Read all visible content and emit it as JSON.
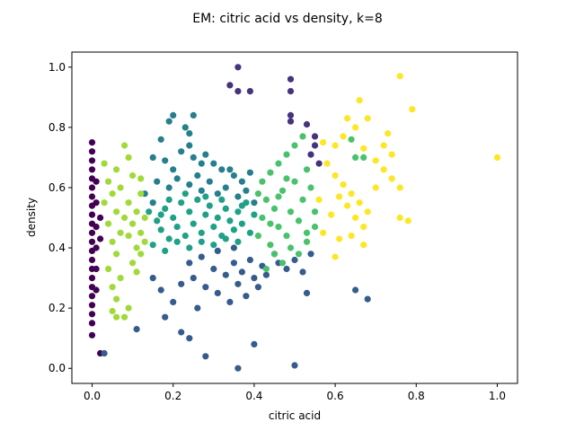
{
  "chart_data": {
    "type": "scatter",
    "title": "EM: citric acid vs density, k=8",
    "xlabel": "citric acid",
    "ylabel": "density",
    "xlim": [
      -0.05,
      1.05
    ],
    "ylim": [
      -0.05,
      1.05
    ],
    "xticks": [
      0.0,
      0.2,
      0.4,
      0.6,
      0.8,
      1.0
    ],
    "xtick_labels": [
      "0.0",
      "0.2",
      "0.4",
      "0.6",
      "0.8",
      "1.0"
    ],
    "yticks": [
      0.0,
      0.2,
      0.4,
      0.6,
      0.8,
      1.0
    ],
    "ytick_labels": [
      "0.0",
      "0.2",
      "0.4",
      "0.6",
      "0.8",
      "1.0"
    ],
    "grid": false,
    "legend": "none",
    "series": [
      {
        "color": "#440154",
        "points": [
          [
            0.0,
            0.75
          ],
          [
            0.0,
            0.72
          ],
          [
            0.0,
            0.69
          ],
          [
            0.0,
            0.66
          ],
          [
            0.0,
            0.63
          ],
          [
            0.0,
            0.6
          ],
          [
            0.0,
            0.57
          ],
          [
            0.0,
            0.54
          ],
          [
            0.0,
            0.51
          ],
          [
            0.0,
            0.48
          ],
          [
            0.0,
            0.45
          ],
          [
            0.0,
            0.42
          ],
          [
            0.0,
            0.39
          ],
          [
            0.0,
            0.36
          ],
          [
            0.0,
            0.33
          ],
          [
            0.0,
            0.3
          ],
          [
            0.0,
            0.27
          ],
          [
            0.0,
            0.24
          ],
          [
            0.0,
            0.21
          ],
          [
            0.0,
            0.18
          ],
          [
            0.0,
            0.15
          ],
          [
            0.0,
            0.11
          ],
          [
            0.01,
            0.62
          ],
          [
            0.01,
            0.55
          ],
          [
            0.01,
            0.47
          ],
          [
            0.01,
            0.4
          ],
          [
            0.01,
            0.33
          ],
          [
            0.01,
            0.26
          ],
          [
            0.02,
            0.05
          ],
          [
            0.02,
            0.5
          ],
          [
            0.02,
            0.43
          ]
        ]
      },
      {
        "color": "#46327e",
        "points": [
          [
            0.36,
            1.0
          ],
          [
            0.34,
            0.94
          ],
          [
            0.36,
            0.92
          ],
          [
            0.39,
            0.92
          ],
          [
            0.49,
            0.96
          ],
          [
            0.49,
            0.92
          ],
          [
            0.49,
            0.84
          ],
          [
            0.49,
            0.82
          ],
          [
            0.53,
            0.81
          ],
          [
            0.55,
            0.77
          ],
          [
            0.55,
            0.74
          ],
          [
            0.54,
            0.71
          ],
          [
            0.56,
            0.68
          ]
        ]
      },
      {
        "color": "#365c8d",
        "points": [
          [
            0.03,
            0.05
          ],
          [
            0.11,
            0.13
          ],
          [
            0.18,
            0.17
          ],
          [
            0.22,
            0.12
          ],
          [
            0.24,
            0.1
          ],
          [
            0.28,
            0.04
          ],
          [
            0.36,
            0.0
          ],
          [
            0.4,
            0.08
          ],
          [
            0.5,
            0.01
          ],
          [
            0.15,
            0.3
          ],
          [
            0.17,
            0.26
          ],
          [
            0.2,
            0.22
          ],
          [
            0.22,
            0.28
          ],
          [
            0.25,
            0.3
          ],
          [
            0.26,
            0.2
          ],
          [
            0.28,
            0.27
          ],
          [
            0.3,
            0.33
          ],
          [
            0.31,
            0.25
          ],
          [
            0.33,
            0.31
          ],
          [
            0.34,
            0.22
          ],
          [
            0.35,
            0.35
          ],
          [
            0.36,
            0.28
          ],
          [
            0.37,
            0.32
          ],
          [
            0.38,
            0.24
          ],
          [
            0.39,
            0.36
          ],
          [
            0.4,
            0.3
          ],
          [
            0.41,
            0.27
          ],
          [
            0.42,
            0.34
          ],
          [
            0.43,
            0.31
          ],
          [
            0.45,
            0.38
          ],
          [
            0.46,
            0.35
          ],
          [
            0.48,
            0.33
          ],
          [
            0.5,
            0.36
          ],
          [
            0.52,
            0.32
          ],
          [
            0.54,
            0.38
          ],
          [
            0.53,
            0.25
          ],
          [
            0.65,
            0.26
          ],
          [
            0.68,
            0.23
          ],
          [
            0.27,
            0.37
          ],
          [
            0.31,
            0.39
          ],
          [
            0.35,
            0.4
          ],
          [
            0.24,
            0.35
          ]
        ]
      },
      {
        "color": "#277f8e",
        "points": [
          [
            0.2,
            0.84
          ],
          [
            0.25,
            0.84
          ],
          [
            0.19,
            0.82
          ],
          [
            0.23,
            0.8
          ],
          [
            0.24,
            0.78
          ],
          [
            0.17,
            0.76
          ],
          [
            0.24,
            0.74
          ],
          [
            0.15,
            0.7
          ],
          [
            0.18,
            0.69
          ],
          [
            0.22,
            0.72
          ],
          [
            0.25,
            0.7
          ],
          [
            0.27,
            0.68
          ],
          [
            0.3,
            0.68
          ],
          [
            0.32,
            0.66
          ],
          [
            0.35,
            0.64
          ],
          [
            0.37,
            0.62
          ],
          [
            0.16,
            0.62
          ],
          [
            0.19,
            0.6
          ],
          [
            0.21,
            0.63
          ],
          [
            0.24,
            0.61
          ],
          [
            0.27,
            0.59
          ],
          [
            0.29,
            0.62
          ],
          [
            0.31,
            0.58
          ],
          [
            0.33,
            0.6
          ],
          [
            0.36,
            0.57
          ],
          [
            0.38,
            0.59
          ],
          [
            0.4,
            0.55
          ],
          [
            0.13,
            0.58
          ],
          [
            0.15,
            0.55
          ],
          [
            0.26,
            0.64
          ],
          [
            0.34,
            0.66
          ],
          [
            0.39,
            0.65
          ],
          [
            0.28,
            0.71
          ],
          [
            0.2,
            0.66
          ]
        ]
      },
      {
        "color": "#1fa187",
        "points": [
          [
            0.14,
            0.52
          ],
          [
            0.16,
            0.49
          ],
          [
            0.17,
            0.46
          ],
          [
            0.18,
            0.53
          ],
          [
            0.19,
            0.43
          ],
          [
            0.2,
            0.5
          ],
          [
            0.21,
            0.47
          ],
          [
            0.22,
            0.55
          ],
          [
            0.23,
            0.44
          ],
          [
            0.24,
            0.52
          ],
          [
            0.25,
            0.48
          ],
          [
            0.26,
            0.56
          ],
          [
            0.27,
            0.45
          ],
          [
            0.28,
            0.51
          ],
          [
            0.29,
            0.54
          ],
          [
            0.3,
            0.47
          ],
          [
            0.31,
            0.5
          ],
          [
            0.32,
            0.44
          ],
          [
            0.33,
            0.53
          ],
          [
            0.34,
            0.49
          ],
          [
            0.35,
            0.46
          ],
          [
            0.36,
            0.52
          ],
          [
            0.37,
            0.48
          ],
          [
            0.38,
            0.55
          ],
          [
            0.39,
            0.45
          ],
          [
            0.4,
            0.51
          ],
          [
            0.15,
            0.41
          ],
          [
            0.18,
            0.39
          ],
          [
            0.21,
            0.42
          ],
          [
            0.24,
            0.4
          ],
          [
            0.27,
            0.42
          ],
          [
            0.3,
            0.41
          ],
          [
            0.33,
            0.43
          ],
          [
            0.36,
            0.42
          ],
          [
            0.19,
            0.56
          ],
          [
            0.23,
            0.58
          ],
          [
            0.28,
            0.57
          ],
          [
            0.32,
            0.56
          ],
          [
            0.37,
            0.54
          ],
          [
            0.17,
            0.51
          ]
        ]
      },
      {
        "color": "#4ac16d",
        "points": [
          [
            0.41,
            0.44
          ],
          [
            0.42,
            0.5
          ],
          [
            0.43,
            0.56
          ],
          [
            0.44,
            0.41
          ],
          [
            0.45,
            0.53
          ],
          [
            0.46,
            0.47
          ],
          [
            0.47,
            0.59
          ],
          [
            0.48,
            0.44
          ],
          [
            0.49,
            0.52
          ],
          [
            0.5,
            0.62
          ],
          [
            0.51,
            0.49
          ],
          [
            0.52,
            0.56
          ],
          [
            0.53,
            0.45
          ],
          [
            0.54,
            0.6
          ],
          [
            0.55,
            0.52
          ],
          [
            0.44,
            0.65
          ],
          [
            0.46,
            0.68
          ],
          [
            0.48,
            0.71
          ],
          [
            0.5,
            0.74
          ],
          [
            0.52,
            0.77
          ],
          [
            0.42,
            0.62
          ],
          [
            0.45,
            0.38
          ],
          [
            0.47,
            0.35
          ],
          [
            0.43,
            0.33
          ],
          [
            0.49,
            0.4
          ],
          [
            0.51,
            0.38
          ],
          [
            0.53,
            0.42
          ],
          [
            0.55,
            0.47
          ],
          [
            0.64,
            0.76
          ],
          [
            0.65,
            0.7
          ],
          [
            0.67,
            0.7
          ],
          [
            0.46,
            0.57
          ],
          [
            0.48,
            0.63
          ],
          [
            0.41,
            0.58
          ],
          [
            0.53,
            0.66
          ],
          [
            0.44,
            0.48
          ]
        ]
      },
      {
        "color": "#a0da39",
        "points": [
          [
            0.03,
            0.55
          ],
          [
            0.04,
            0.48
          ],
          [
            0.04,
            0.62
          ],
          [
            0.05,
            0.42
          ],
          [
            0.05,
            0.58
          ],
          [
            0.06,
            0.52
          ],
          [
            0.06,
            0.38
          ],
          [
            0.07,
            0.45
          ],
          [
            0.07,
            0.6
          ],
          [
            0.08,
            0.5
          ],
          [
            0.08,
            0.74
          ],
          [
            0.09,
            0.44
          ],
          [
            0.09,
            0.55
          ],
          [
            0.1,
            0.48
          ],
          [
            0.1,
            0.64
          ],
          [
            0.11,
            0.52
          ],
          [
            0.11,
            0.4
          ],
          [
            0.12,
            0.58
          ],
          [
            0.12,
            0.45
          ],
          [
            0.13,
            0.5
          ],
          [
            0.04,
            0.33
          ],
          [
            0.05,
            0.27
          ],
          [
            0.06,
            0.23
          ],
          [
            0.07,
            0.3
          ],
          [
            0.08,
            0.17
          ],
          [
            0.09,
            0.2
          ],
          [
            0.1,
            0.35
          ],
          [
            0.11,
            0.32
          ],
          [
            0.12,
            0.38
          ],
          [
            0.05,
            0.19
          ],
          [
            0.06,
            0.17
          ],
          [
            0.03,
            0.68
          ],
          [
            0.06,
            0.66
          ],
          [
            0.09,
            0.7
          ],
          [
            0.12,
            0.63
          ],
          [
            0.13,
            0.42
          ]
        ]
      },
      {
        "color": "#fde725",
        "points": [
          [
            1.0,
            0.7
          ],
          [
            0.79,
            0.86
          ],
          [
            0.76,
            0.97
          ],
          [
            0.73,
            0.78
          ],
          [
            0.66,
            0.89
          ],
          [
            0.68,
            0.83
          ],
          [
            0.63,
            0.83
          ],
          [
            0.57,
            0.75
          ],
          [
            0.6,
            0.74
          ],
          [
            0.62,
            0.77
          ],
          [
            0.65,
            0.8
          ],
          [
            0.67,
            0.73
          ],
          [
            0.7,
            0.69
          ],
          [
            0.72,
            0.66
          ],
          [
            0.74,
            0.63
          ],
          [
            0.76,
            0.6
          ],
          [
            0.58,
            0.68
          ],
          [
            0.6,
            0.64
          ],
          [
            0.62,
            0.61
          ],
          [
            0.64,
            0.58
          ],
          [
            0.66,
            0.55
          ],
          [
            0.68,
            0.52
          ],
          [
            0.61,
            0.57
          ],
          [
            0.63,
            0.54
          ],
          [
            0.65,
            0.5
          ],
          [
            0.67,
            0.47
          ],
          [
            0.59,
            0.51
          ],
          [
            0.57,
            0.45
          ],
          [
            0.61,
            0.43
          ],
          [
            0.64,
            0.44
          ],
          [
            0.67,
            0.41
          ],
          [
            0.6,
            0.37
          ],
          [
            0.76,
            0.5
          ],
          [
            0.78,
            0.49
          ],
          [
            0.72,
            0.74
          ],
          [
            0.74,
            0.71
          ],
          [
            0.7,
            0.6
          ],
          [
            0.56,
            0.56
          ]
        ]
      }
    ]
  }
}
